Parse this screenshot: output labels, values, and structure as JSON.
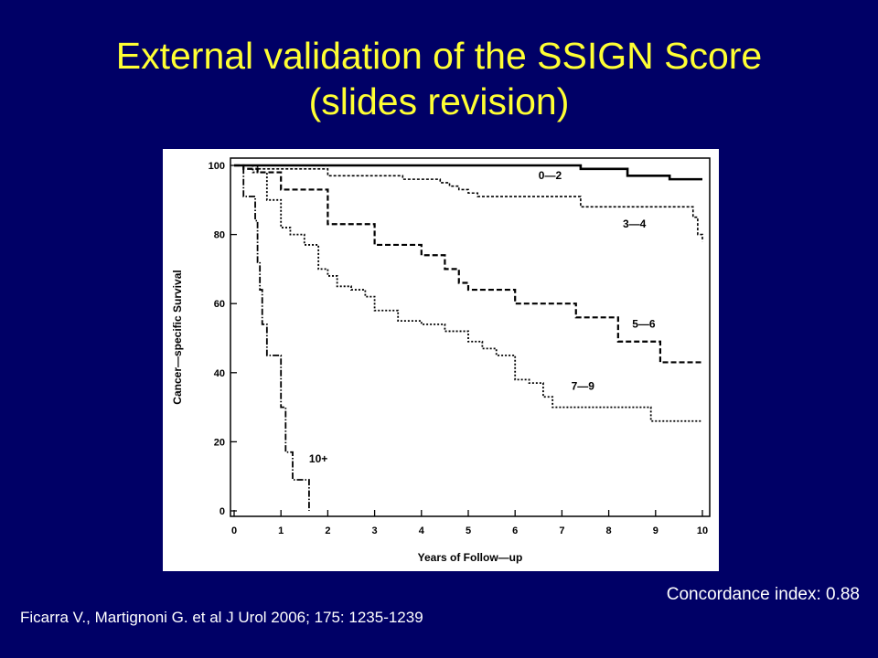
{
  "slide": {
    "title_line1": "External validation of the SSIGN Score",
    "title_line2": "(slides revision)",
    "concordance": "Concordance index: 0.88",
    "citation": "Ficarra V., Martignoni G. et al J Urol 2006; 175: 1235-1239",
    "colors": {
      "background": "#000066",
      "title": "#ffff33",
      "text": "#ffffff"
    }
  },
  "chart_data": {
    "type": "line",
    "step": true,
    "title": "",
    "xlabel": "Years of Follow—up",
    "ylabel": "Cancer—specific Survival",
    "xlim": [
      0,
      10
    ],
    "ylim": [
      0,
      100
    ],
    "xticks": [
      0,
      1,
      2,
      3,
      4,
      5,
      6,
      7,
      8,
      9,
      10
    ],
    "yticks": [
      0,
      20,
      40,
      60,
      80,
      100
    ],
    "grid": false,
    "series": [
      {
        "name": "0—2",
        "dash": "solid",
        "width": 2.6,
        "x": [
          0,
          7.4,
          8.4,
          9.3,
          10
        ],
        "y": [
          100,
          99,
          97,
          96,
          96
        ]
      },
      {
        "name": "3—4",
        "dash": "3,2",
        "width": 1.6,
        "x": [
          0,
          0.5,
          1.8,
          2.0,
          3.6,
          4.4,
          4.6,
          4.8,
          5.0,
          5.2,
          5.5,
          7.4,
          9.4,
          9.8,
          9.9,
          10
        ],
        "y": [
          100,
          99,
          99,
          97,
          96,
          95,
          94,
          93,
          92,
          91,
          91,
          88,
          88,
          85,
          80,
          78
        ]
      },
      {
        "name": "5—6",
        "dash": "6,3",
        "width": 2.2,
        "x": [
          0,
          0.2,
          0.5,
          0.9,
          1.0,
          1.5,
          2.0,
          2.5,
          3.0,
          3.5,
          4.0,
          4.5,
          4.8,
          5.0,
          5.5,
          6.0,
          6.5,
          7.0,
          7.3,
          7.8,
          8.2,
          8.6,
          9.1,
          10
        ],
        "y": [
          100,
          99,
          98,
          98,
          93,
          93,
          83,
          83,
          77,
          77,
          74,
          70,
          66,
          64,
          64,
          60,
          60,
          60,
          56,
          56,
          49,
          49,
          43,
          43
        ]
      },
      {
        "name": "7—9",
        "dash": "2,2",
        "width": 1.8,
        "x": [
          0,
          0.4,
          0.7,
          1.0,
          1.2,
          1.5,
          1.8,
          2.0,
          2.2,
          2.5,
          2.8,
          3.0,
          3.5,
          4.0,
          4.5,
          5.0,
          5.3,
          5.6,
          6.0,
          6.3,
          6.6,
          6.8,
          7.2,
          8.6,
          8.9,
          10
        ],
        "y": [
          100,
          98,
          90,
          82,
          80,
          77,
          70,
          68,
          65,
          64,
          62,
          58,
          55,
          54,
          52,
          49,
          47,
          45,
          38,
          37,
          33,
          30,
          30,
          30,
          26,
          26
        ]
      },
      {
        "name": "10+",
        "dash": "7,2,1.5,2",
        "width": 1.8,
        "x": [
          0,
          0.2,
          0.45,
          0.5,
          0.55,
          0.6,
          0.7,
          0.8,
          1.0,
          1.1,
          1.25,
          1.55,
          1.6
        ],
        "y": [
          100,
          91,
          84,
          72,
          64,
          54,
          45,
          45,
          30,
          17,
          9,
          9,
          0
        ]
      }
    ],
    "labels": [
      {
        "text": "0—2",
        "x": 6.5,
        "y": 96
      },
      {
        "text": "3—4",
        "x": 8.3,
        "y": 82
      },
      {
        "text": "5—6",
        "x": 8.5,
        "y": 53
      },
      {
        "text": "7—9",
        "x": 7.2,
        "y": 35
      },
      {
        "text": "10+",
        "x": 1.6,
        "y": 14
      }
    ]
  }
}
